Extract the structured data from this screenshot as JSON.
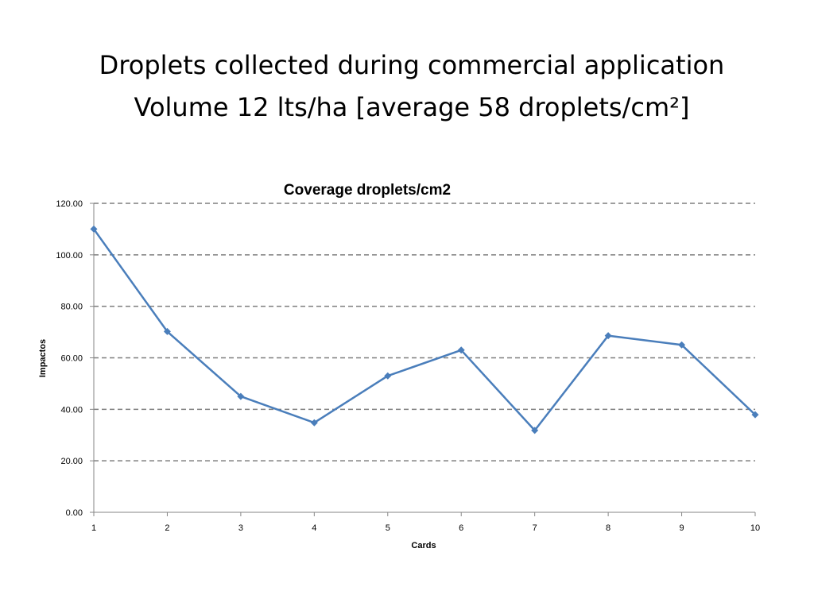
{
  "slide": {
    "title_line1": "Droplets collected during commercial application",
    "title_line2": "Volume 12 lts/ha [average 58 droplets/cm²]"
  },
  "chart_data": {
    "type": "line",
    "title": "Coverage droplets/cm2",
    "xlabel": "Cards",
    "ylabel": "Impactos",
    "x": [
      1,
      2,
      3,
      4,
      5,
      6,
      7,
      8,
      9,
      10
    ],
    "series": [
      {
        "values": [
          110,
          70.2,
          45,
          34.8,
          53,
          63,
          31.8,
          68.6,
          65,
          37.9
        ],
        "color": "#4a7ebb"
      }
    ],
    "ylim": [
      0,
      120
    ],
    "yticks": [
      "0.00",
      "20.00",
      "40.00",
      "60.00",
      "80.00",
      "100.00",
      "120.00"
    ],
    "xticks": [
      "1",
      "2",
      "3",
      "4",
      "5",
      "6",
      "7",
      "8",
      "9",
      "10"
    ],
    "grid": "horizontal dashed",
    "legend": "none"
  }
}
